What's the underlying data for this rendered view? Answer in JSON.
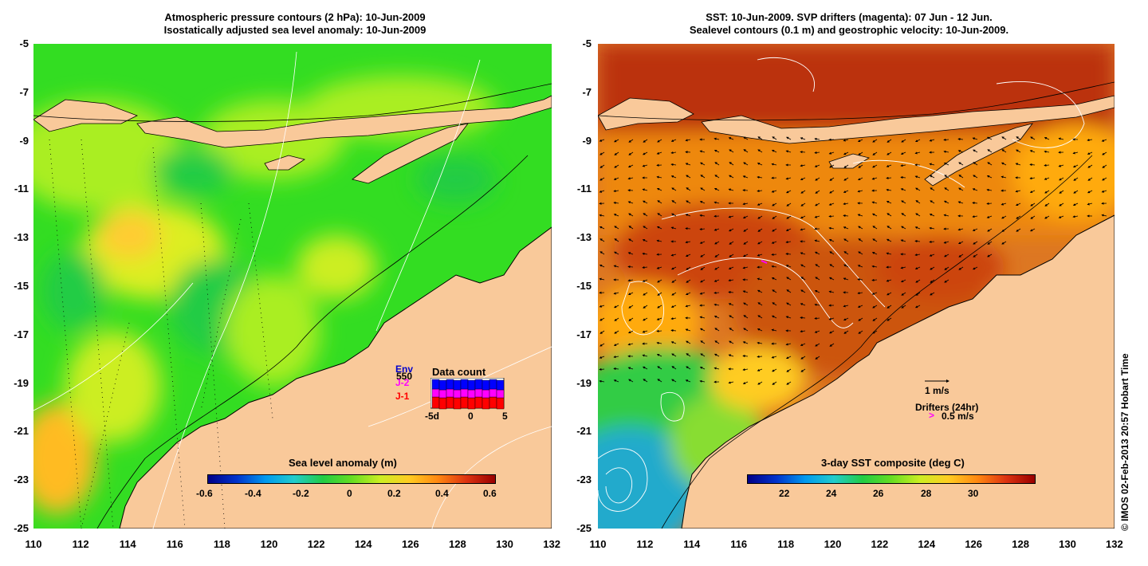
{
  "left_map": {
    "title_line1": "Atmospheric pressure contours (2 hPa): 10-Jun-2009",
    "title_line2": "Isostatically adjusted sea level anomaly: 10-Jun-2009",
    "colorbar_label": "Sea level anomaly (m)",
    "colorbar_ticks": [
      "-0.6",
      "-0.4",
      "-0.2",
      "0",
      "0.2",
      "0.4",
      "0.6"
    ],
    "data_count": {
      "title": "Data count",
      "series_labels": [
        {
          "text": "Env",
          "color": "#0000cc"
        },
        {
          "text": "J-2",
          "color": "#ff00ff"
        },
        {
          "text": "J-1",
          "color": "#ff0000"
        }
      ],
      "overlay_number": "550",
      "x_ticks": [
        "-5d",
        "0",
        "5"
      ]
    }
  },
  "right_map": {
    "title_line1": "SST: 10-Jun-2009. SVP drifters (magenta): 07 Jun - 12 Jun.",
    "title_line2": "Sealevel contours (0.1 m) and geostrophic velocity: 10-Jun-2009.",
    "colorbar_label": "3-day SST composite (deg C)",
    "colorbar_ticks": [
      "22",
      "24",
      "26",
      "28",
      "30"
    ],
    "velocity_legend": "1 m/s",
    "drifter_legend_title": "Drifters (24hr)",
    "drifter_legend_value": "0.5 m/s",
    "drifter_symbol": ">"
  },
  "axes": {
    "y_ticks": [
      "-5",
      "-7",
      "-9",
      "-11",
      "-13",
      "-15",
      "-17",
      "-19",
      "-21",
      "-23",
      "-25"
    ],
    "x_ticks": [
      "110",
      "112",
      "114",
      "116",
      "118",
      "120",
      "122",
      "124",
      "126",
      "128",
      "130",
      "132"
    ]
  },
  "credit": "© IMOS 02-Feb-2013 20:57 Hobart Time",
  "colors": {
    "land": "#f9c99a",
    "ocean_green": "#33dd22",
    "sst_orange": "#ee7711",
    "sst_red": "#bb3311"
  }
}
